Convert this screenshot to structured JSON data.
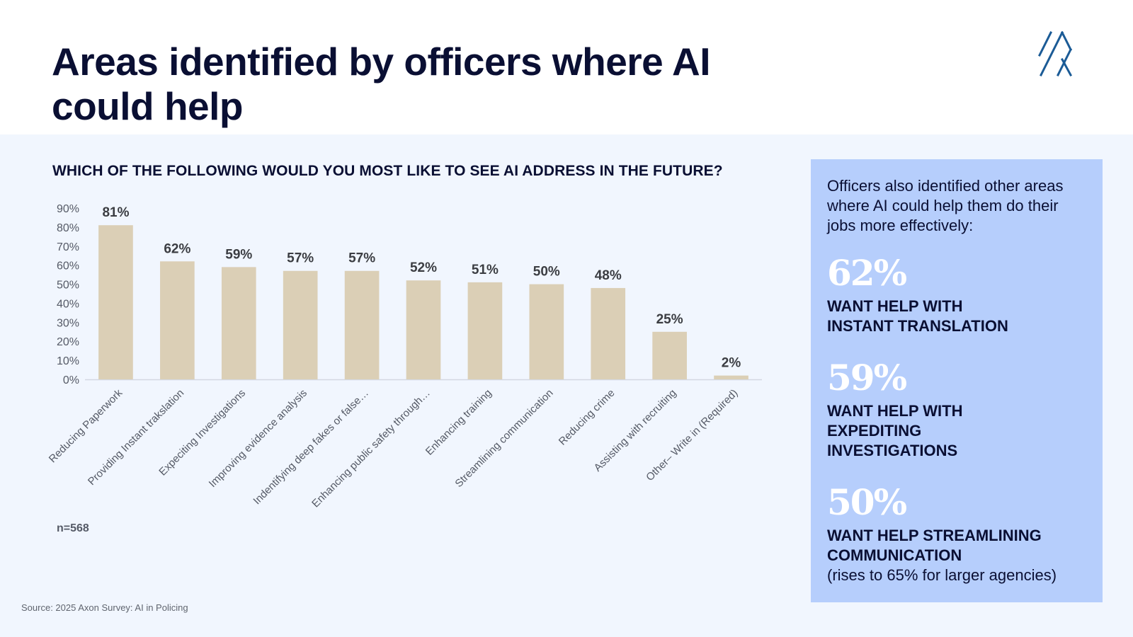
{
  "header": {
    "title": "Areas identified by officers where AI could help",
    "logo_icon": "brand-logo-icon"
  },
  "main": {
    "question": "WHICH OF THE FOLLOWING WOULD YOU MOST LIKE TO SEE AI ADDRESS IN THE FUTURE?",
    "sample_size": "n=568",
    "source": "Source: 2025 Axon Survey: AI in Policing"
  },
  "chart_data": {
    "type": "bar",
    "title": "WHICH OF THE FOLLOWING WOULD YOU MOST LIKE TO SEE AI ADDRESS IN THE FUTURE?",
    "xlabel": "",
    "ylabel": "",
    "ylim": [
      0,
      90
    ],
    "yticks": [
      0,
      10,
      20,
      30,
      40,
      50,
      60,
      70,
      80,
      90
    ],
    "ytick_labels": [
      "0%",
      "10%",
      "20%",
      "30%",
      "40%",
      "50%",
      "60%",
      "70%",
      "80%",
      "90%"
    ],
    "grid": false,
    "legend": "none",
    "bar_color": "#dbcfb6",
    "categories": [
      "Reducing Paperwork",
      "Providing Instant trakslation",
      "Expeciting Investigations",
      "Improving evidence analysis",
      "Indentifying deep fakes or false…",
      "Enhancing public safety through…",
      "Enhancing training",
      "Streamlining communication",
      "Reducing crime",
      "Assisting with recruiting",
      "Other– Write in (Required)"
    ],
    "values": [
      81,
      62,
      59,
      57,
      57,
      52,
      51,
      50,
      48,
      25,
      2
    ],
    "data_labels": [
      "81%",
      "62%",
      "59%",
      "57%",
      "57%",
      "52%",
      "51%",
      "50%",
      "48%",
      "25%",
      "2%"
    ]
  },
  "panel": {
    "intro": "Officers also identified other areas where AI could help them do their jobs more effectively:",
    "stats": [
      {
        "value": "62%",
        "label_lines": [
          "WANT HELP WITH",
          "INSTANT TRANSLATION"
        ],
        "note": ""
      },
      {
        "value": "59%",
        "label_lines": [
          "WANT HELP WITH",
          "EXPEDITING",
          "INVESTIGATIONS"
        ],
        "note": ""
      },
      {
        "value": "50%",
        "label_lines": [
          "WANT HELP STREAMLINING",
          "COMMUNICATION"
        ],
        "note": "(rises to 65% for larger agencies)"
      }
    ]
  }
}
